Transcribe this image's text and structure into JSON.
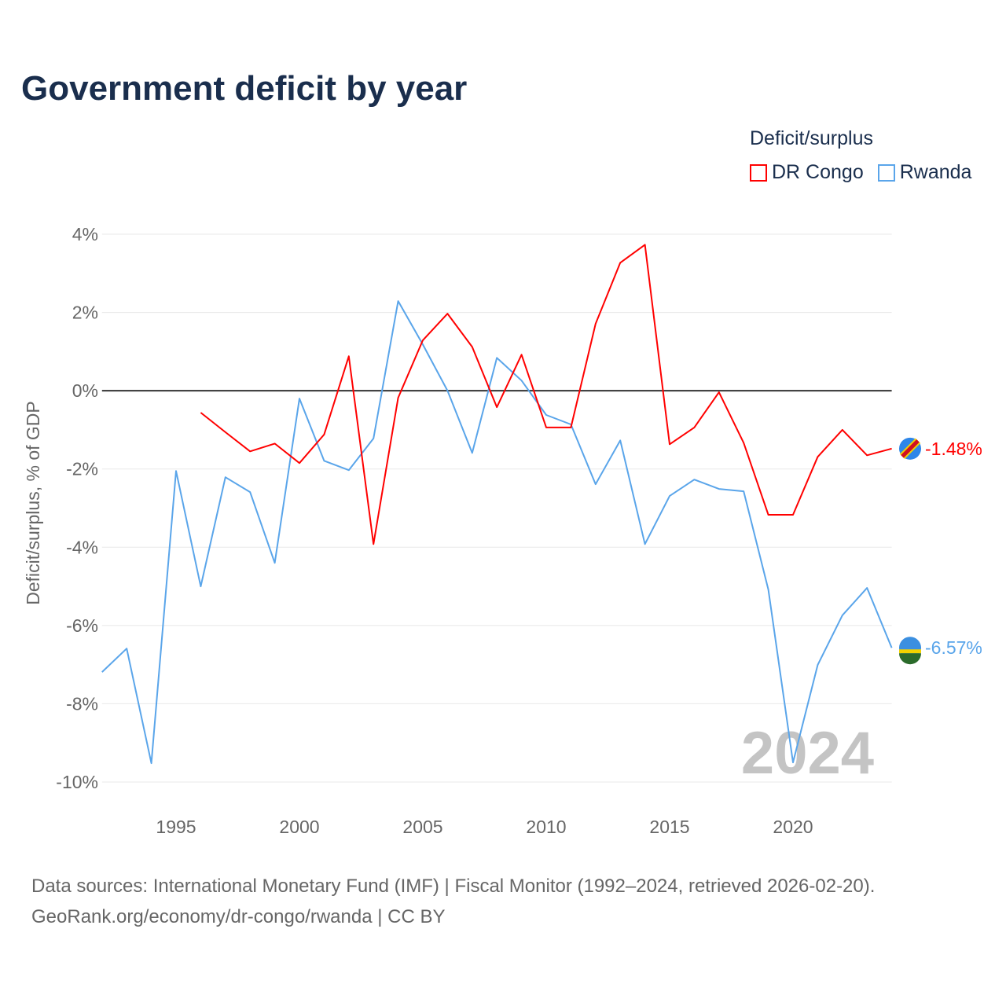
{
  "title": "Government deficit by year",
  "legend": {
    "title": "Deficit/surplus",
    "items": [
      {
        "name": "DR Congo",
        "color": "#ff0000"
      },
      {
        "name": "Rwanda",
        "color": "#5aa5ea"
      }
    ]
  },
  "source": {
    "line1": "Data sources: International Monetary Fund (IMF) | Fiscal Monitor (1992–2024, retrieved 2026-02-20).",
    "line2": "GeoRank.org/economy/dr-congo/rwanda | CC BY"
  },
  "chart_data": {
    "type": "line",
    "title": "Government deficit by year",
    "xlabel": "",
    "ylabel": "Deficit/surplus, % of GDP",
    "xlim": [
      1992,
      2024
    ],
    "ylim": [
      -10,
      4
    ],
    "x_ticks": [
      1995,
      2000,
      2005,
      2010,
      2015,
      2020
    ],
    "y_ticks": [
      4,
      2,
      0,
      -2,
      -4,
      -6,
      -8,
      -10
    ],
    "y_tick_labels": [
      "4%",
      "2%",
      "0%",
      "-2%",
      "-4%",
      "-6%",
      "-8%",
      "-10%"
    ],
    "year_watermark": "2024",
    "series": [
      {
        "name": "DR Congo",
        "color": "#ff0000",
        "end_label": "-1.48%",
        "start_year": 1996,
        "values": [
          -0.56,
          -1.06,
          -1.55,
          -1.35,
          -1.85,
          -1.12,
          0.88,
          -3.92,
          -0.18,
          1.29,
          1.97,
          1.12,
          -0.42,
          0.92,
          -0.94,
          -0.94,
          1.71,
          3.27,
          3.73,
          -1.37,
          -0.94,
          -0.04,
          -1.33,
          -3.17,
          -3.17,
          -1.69,
          -1.0,
          -1.65,
          -1.48
        ]
      },
      {
        "name": "Rwanda",
        "color": "#5aa5ea",
        "end_label": "-6.57%",
        "start_year": 1992,
        "values": [
          -7.19,
          -6.59,
          -9.52,
          -2.05,
          -5.0,
          -2.21,
          -2.59,
          -4.4,
          -0.2,
          -1.79,
          -2.03,
          -1.22,
          2.29,
          1.18,
          0.0,
          -1.59,
          0.84,
          0.26,
          -0.62,
          -0.86,
          -2.39,
          -1.27,
          -3.92,
          -2.69,
          -2.27,
          -2.51,
          -2.57,
          -5.08,
          -9.5,
          -7.01,
          -5.74,
          -5.04,
          -6.57
        ]
      }
    ]
  }
}
